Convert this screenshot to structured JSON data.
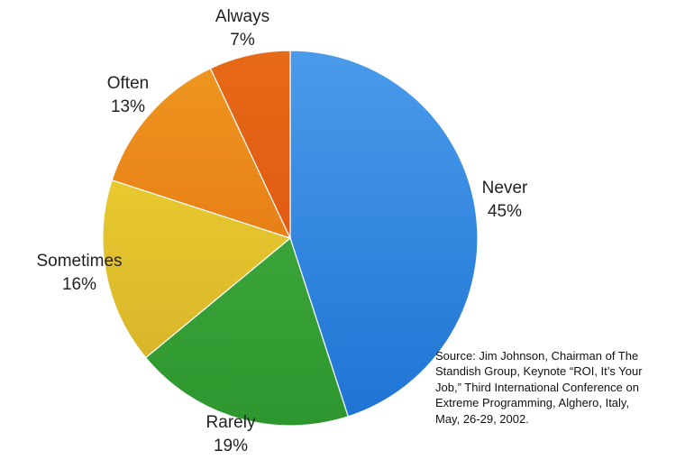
{
  "chart_data": {
    "type": "pie",
    "slices": [
      {
        "label": "Never",
        "value": 45,
        "value_label": "45%",
        "color": "#2f86e0"
      },
      {
        "label": "Rarely",
        "value": 19,
        "value_label": "19%",
        "color": "#3aa43a"
      },
      {
        "label": "Sometimes",
        "value": 16,
        "value_label": "16%",
        "color": "#e2c12e"
      },
      {
        "label": "Often",
        "value": 13,
        "value_label": "13%",
        "color": "#ec8f1c"
      },
      {
        "label": "Always",
        "value": 7,
        "value_label": "7%",
        "color": "#e46115"
      }
    ],
    "start": "12 o'clock",
    "direction": "clockwise"
  },
  "source_note": {
    "lines": [
      "Source: Jim Johnson, Chairman of The",
      "Standish Group, Keynote “ROI, It’s Your",
      "Job,” Third International Conference on",
      "Extreme Programming, Alghero, Italy,",
      "May, 26-29, 2002."
    ]
  }
}
